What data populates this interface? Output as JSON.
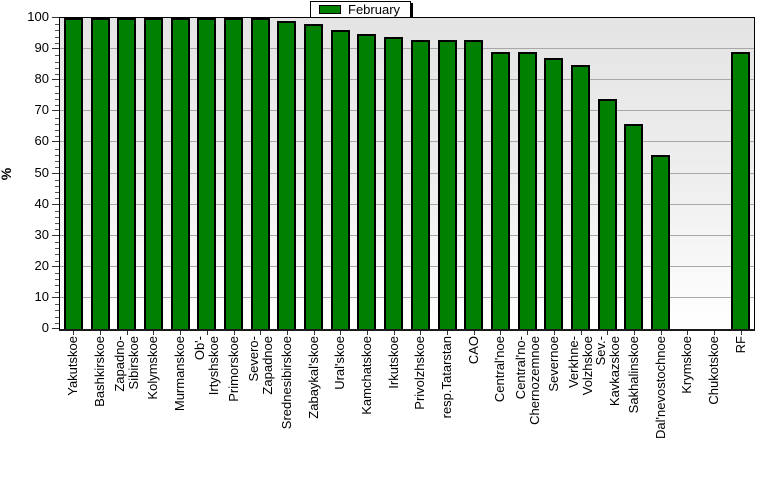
{
  "chart_data": {
    "type": "bar",
    "title": "",
    "xlabel": "",
    "ylabel": "%",
    "ylim": [
      0,
      100
    ],
    "y_major_step": 10,
    "y_minor_step": 2,
    "grid": true,
    "legend": {
      "label": "February",
      "position": "top-center"
    },
    "categories": [
      "Yakutskoe",
      "Bashkirskoe",
      "Zapadno-\nSibirskoe",
      "Kolymskoe",
      "Murmanskoe",
      "Ob'-\nIrtyshskoe",
      "Primorskoe",
      "Severo-\nZapadnoe",
      "Srednesibirskoe",
      "Zabaykal'skoe",
      "Ural'skoe",
      "Kamchatskoe",
      "Irkutskoe",
      "Privolzhskoe",
      "resp.Tatarstan",
      "CAO",
      "Central'noe",
      "Central'no-\nChernozemnoe",
      "Severnoe",
      "Verkhne-\nVolzhskoe",
      "Sev.-\nKavkazskoe",
      "Sakhalinskoe",
      "Dal'nevostochnoe",
      "Krymskoe",
      "Chukotskoe",
      "RF"
    ],
    "values": [
      100,
      100,
      100,
      100,
      100,
      100,
      100,
      100,
      99,
      98,
      96,
      95,
      94,
      93,
      93,
      93,
      89,
      89,
      87,
      85,
      74,
      66,
      56,
      0,
      0,
      89
    ]
  },
  "colors": {
    "bar_fill": "#008000",
    "bar_border": "#000000",
    "plot_bg_top": "#e4e4e4",
    "plot_bg_bottom": "#ffffff",
    "gridline": "#a8a8a8",
    "axis": "#000000",
    "text": "#000000",
    "page_bg": "#ffffff"
  }
}
